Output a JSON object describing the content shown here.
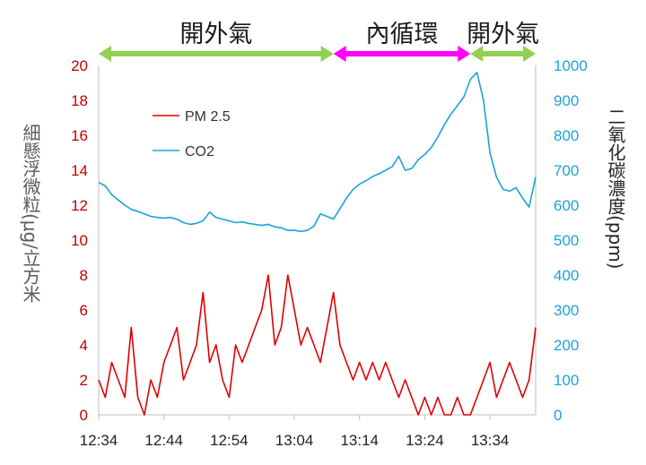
{
  "chart_data": {
    "type": "line",
    "x_ticks": [
      "12:34",
      "12:44",
      "12:54",
      "13:04",
      "13:14",
      "13:24",
      "13:34"
    ],
    "x_range": [
      "12:34",
      "13:41"
    ],
    "y_left": {
      "label": "細懸浮微粒(μg/立方米",
      "range": [
        0,
        20
      ],
      "ticks": [
        "0",
        "2",
        "4",
        "6",
        "8",
        "10",
        "12",
        "14",
        "16",
        "18",
        "20"
      ]
    },
    "y_right": {
      "label": "二氧化碳濃度(ppm)",
      "range": [
        0,
        1000
      ],
      "ticks": [
        "0",
        "100",
        "200",
        "300",
        "400",
        "500",
        "600",
        "700",
        "800",
        "900",
        "1000"
      ]
    },
    "periods": [
      {
        "label": "開外氣",
        "start": "12:34",
        "end": "13:10",
        "color": "#92d050"
      },
      {
        "label": "內循環",
        "start": "13:10",
        "end": "13:31",
        "color": "#ff00ff"
      },
      {
        "label": "開外氣",
        "start": "13:31",
        "end": "13:41",
        "color": "#92d050"
      }
    ],
    "series": [
      {
        "name": "PM 2.5",
        "axis": "left",
        "color": "#e00000",
        "points": [
          [
            "12:34",
            2
          ],
          [
            "12:35",
            1
          ],
          [
            "12:36",
            3
          ],
          [
            "12:37",
            2
          ],
          [
            "12:38",
            1
          ],
          [
            "12:39",
            5
          ],
          [
            "12:40",
            1
          ],
          [
            "12:41",
            0
          ],
          [
            "12:42",
            2
          ],
          [
            "12:43",
            1
          ],
          [
            "12:44",
            3
          ],
          [
            "12:45",
            4
          ],
          [
            "12:46",
            5
          ],
          [
            "12:47",
            2
          ],
          [
            "12:48",
            3
          ],
          [
            "12:49",
            4
          ],
          [
            "12:50",
            7
          ],
          [
            "12:51",
            3
          ],
          [
            "12:52",
            4
          ],
          [
            "12:53",
            2
          ],
          [
            "12:54",
            1
          ],
          [
            "12:55",
            4
          ],
          [
            "12:56",
            3
          ],
          [
            "12:57",
            4
          ],
          [
            "12:58",
            5
          ],
          [
            "12:59",
            6
          ],
          [
            "13:00",
            8
          ],
          [
            "13:01",
            4
          ],
          [
            "13:02",
            5
          ],
          [
            "13:03",
            8
          ],
          [
            "13:04",
            6
          ],
          [
            "13:05",
            4
          ],
          [
            "13:06",
            5
          ],
          [
            "13:07",
            4
          ],
          [
            "13:08",
            3
          ],
          [
            "13:09",
            5
          ],
          [
            "13:10",
            7
          ],
          [
            "13:11",
            4
          ],
          [
            "13:12",
            3
          ],
          [
            "13:13",
            2
          ],
          [
            "13:14",
            3
          ],
          [
            "13:15",
            2
          ],
          [
            "13:16",
            3
          ],
          [
            "13:17",
            2
          ],
          [
            "13:18",
            3
          ],
          [
            "13:19",
            2
          ],
          [
            "13:20",
            1
          ],
          [
            "13:21",
            2
          ],
          [
            "13:22",
            1
          ],
          [
            "13:23",
            0
          ],
          [
            "13:24",
            1
          ],
          [
            "13:25",
            0
          ],
          [
            "13:26",
            1
          ],
          [
            "13:27",
            0
          ],
          [
            "13:28",
            0
          ],
          [
            "13:29",
            1
          ],
          [
            "13:30",
            0
          ],
          [
            "13:31",
            0
          ],
          [
            "13:32",
            1
          ],
          [
            "13:33",
            2
          ],
          [
            "13:34",
            3
          ],
          [
            "13:35",
            1
          ],
          [
            "13:36",
            2
          ],
          [
            "13:37",
            3
          ],
          [
            "13:38",
            2
          ],
          [
            "13:39",
            1
          ],
          [
            "13:40",
            2
          ],
          [
            "13:41",
            5
          ]
        ]
      },
      {
        "name": "CO2",
        "axis": "right",
        "color": "#1aa3d9",
        "points": [
          [
            "12:34",
            665
          ],
          [
            "12:35",
            655
          ],
          [
            "12:36",
            630
          ],
          [
            "12:37",
            615
          ],
          [
            "12:38",
            600
          ],
          [
            "12:39",
            588
          ],
          [
            "12:40",
            582
          ],
          [
            "12:41",
            575
          ],
          [
            "12:42",
            568
          ],
          [
            "12:43",
            565
          ],
          [
            "12:44",
            563
          ],
          [
            "12:45",
            565
          ],
          [
            "12:46",
            560
          ],
          [
            "12:47",
            550
          ],
          [
            "12:48",
            545
          ],
          [
            "12:49",
            548
          ],
          [
            "12:50",
            555
          ],
          [
            "12:51",
            580
          ],
          [
            "12:52",
            565
          ],
          [
            "12:53",
            560
          ],
          [
            "12:54",
            555
          ],
          [
            "12:55",
            550
          ],
          [
            "12:56",
            552
          ],
          [
            "12:57",
            548
          ],
          [
            "12:58",
            545
          ],
          [
            "12:59",
            542
          ],
          [
            "13:00",
            545
          ],
          [
            "13:01",
            538
          ],
          [
            "13:02",
            535
          ],
          [
            "13:03",
            528
          ],
          [
            "13:04",
            528
          ],
          [
            "13:05",
            525
          ],
          [
            "13:06",
            528
          ],
          [
            "13:07",
            540
          ],
          [
            "13:08",
            575
          ],
          [
            "13:09",
            568
          ],
          [
            "13:10",
            560
          ],
          [
            "13:11",
            590
          ],
          [
            "13:12",
            620
          ],
          [
            "13:13",
            645
          ],
          [
            "13:14",
            660
          ],
          [
            "13:15",
            670
          ],
          [
            "13:16",
            682
          ],
          [
            "13:17",
            690
          ],
          [
            "13:18",
            700
          ],
          [
            "13:19",
            710
          ],
          [
            "13:20",
            740
          ],
          [
            "13:21",
            700
          ],
          [
            "13:22",
            705
          ],
          [
            "13:23",
            730
          ],
          [
            "13:24",
            745
          ],
          [
            "13:25",
            765
          ],
          [
            "13:26",
            795
          ],
          [
            "13:27",
            830
          ],
          [
            "13:28",
            860
          ],
          [
            "13:29",
            885
          ],
          [
            "13:30",
            910
          ],
          [
            "13:31",
            960
          ],
          [
            "13:32",
            980
          ],
          [
            "13:33",
            900
          ],
          [
            "13:34",
            750
          ],
          [
            "13:35",
            680
          ],
          [
            "13:36",
            645
          ],
          [
            "13:37",
            640
          ],
          [
            "13:38",
            650
          ],
          [
            "13:39",
            620
          ],
          [
            "13:40",
            595
          ],
          [
            "13:41",
            680
          ]
        ]
      }
    ],
    "legend_position": "upper-left inside plot",
    "grid": false
  }
}
